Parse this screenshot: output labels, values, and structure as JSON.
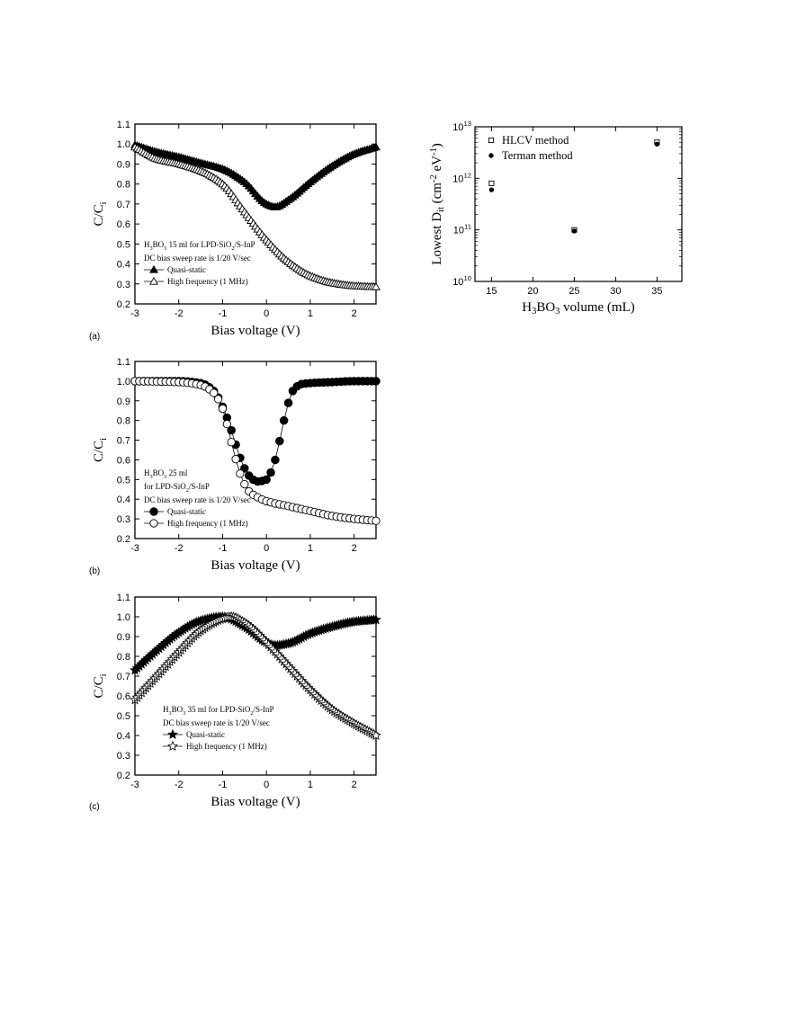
{
  "chart_data": [
    {
      "id": "a",
      "type": "line",
      "panel_label": "(a)",
      "xlabel": "Bias voltage (V)",
      "ylabel": "C/C",
      "ylabel_sub": "i",
      "xlim": [
        -3,
        2.5
      ],
      "ylim": [
        0.2,
        1.1
      ],
      "xticks": [
        "-3",
        "-2",
        "-1",
        "0",
        "1",
        "2"
      ],
      "yticks": [
        "0.2",
        "0.3",
        "0.4",
        "0.5",
        "0.6",
        "0.7",
        "0.8",
        "0.9",
        "1.0",
        "1.1"
      ],
      "annotation": {
        "main": "H",
        "sub1": "3",
        "mid": "BO",
        "sub2": "3",
        "rest": " 15 ml for LPD-SiO",
        "sub3": "2",
        "tail": "/S-InP"
      },
      "annotation_line2": "DC bias sweep rate is 1/20 V/sec",
      "series": [
        {
          "name": "Quasi-static",
          "marker": "triangle-filled",
          "x": [
            -3.0,
            -2.5,
            -2.0,
            -1.5,
            -1.0,
            -0.5,
            0.0,
            0.2,
            0.5,
            1.0,
            1.5,
            2.0,
            2.5
          ],
          "y": [
            0.995,
            0.96,
            0.935,
            0.905,
            0.875,
            0.81,
            0.7,
            0.685,
            0.72,
            0.81,
            0.89,
            0.95,
            0.985
          ]
        },
        {
          "name": "High frequency (1 MHz)",
          "marker": "triangle-open",
          "x": [
            -3.0,
            -2.5,
            -2.0,
            -1.5,
            -1.0,
            -0.5,
            0.0,
            0.5,
            1.0,
            1.5,
            2.0,
            2.5
          ],
          "y": [
            0.985,
            0.925,
            0.9,
            0.865,
            0.8,
            0.66,
            0.52,
            0.41,
            0.34,
            0.305,
            0.29,
            0.285
          ]
        }
      ]
    },
    {
      "id": "dit",
      "type": "scatter",
      "xlabel": {
        "main": "H",
        "sub1": "3",
        "mid": "BO",
        "sub2": "3",
        "rest": " volume (mL)"
      },
      "ylabel": {
        "main": "Lowest D",
        "sub": "it",
        "rest": " (cm",
        "sup1": "-2",
        "rest2": " eV",
        "sup2": "-1",
        "end": ")"
      },
      "xlim": [
        13,
        38
      ],
      "ylim_log10": [
        10,
        13
      ],
      "xticks": [
        "15",
        "20",
        "25",
        "30",
        "35"
      ],
      "yticks": [
        {
          "base": "10",
          "exp": "10"
        },
        {
          "base": "10",
          "exp": "11"
        },
        {
          "base": "10",
          "exp": "12"
        },
        {
          "base": "10",
          "exp": "13"
        }
      ],
      "y_scale": "log",
      "legend_position": "top-left",
      "series": [
        {
          "name": "HLCV method",
          "marker": "square-open",
          "x": [
            15,
            25,
            35
          ],
          "y": [
            800000000000.0,
            100000000000.0,
            5000000000000.0
          ]
        },
        {
          "name": "Terman method",
          "marker": "circle-filled",
          "x": [
            15,
            25,
            35
          ],
          "y": [
            600000000000.0,
            95000000000.0,
            4600000000000.0
          ]
        }
      ]
    },
    {
      "id": "b",
      "type": "line",
      "panel_label": "(b)",
      "xlabel": "Bias voltage (V)",
      "ylabel": "C/C",
      "ylabel_sub": "i",
      "xlim": [
        -3,
        2.5
      ],
      "ylim": [
        0.2,
        1.1
      ],
      "xticks": [
        "-3",
        "-2",
        "-1",
        "0",
        "1",
        "2"
      ],
      "yticks": [
        "0.2",
        "0.3",
        "0.4",
        "0.5",
        "0.6",
        "0.7",
        "0.8",
        "0.9",
        "1.0",
        "1.1"
      ],
      "annotation": {
        "main": "H",
        "sub1": "3",
        "mid": "BO",
        "sub2": "3",
        "rest": " 25 ml"
      },
      "annotation_line2": {
        "main": "for LPD-SiO",
        "sub": "2",
        "rest": "/S-InP"
      },
      "annotation_line3": "DC bias sweep rate is 1/20 V/sec",
      "series": [
        {
          "name": "Quasi-static",
          "marker": "circle-filled",
          "x": [
            -3.0,
            -2.0,
            -1.5,
            -1.2,
            -1.0,
            -0.8,
            -0.6,
            -0.4,
            -0.2,
            0.0,
            0.2,
            0.4,
            0.6,
            0.8,
            1.0,
            1.5,
            2.0,
            2.5
          ],
          "y": [
            1.0,
            1.0,
            0.99,
            0.95,
            0.87,
            0.75,
            0.61,
            0.52,
            0.49,
            0.5,
            0.6,
            0.8,
            0.95,
            0.985,
            0.99,
            0.995,
            1.0,
            1.0
          ]
        },
        {
          "name": "High frequency (1 MHz)",
          "marker": "circle-open",
          "x": [
            -3.0,
            -2.0,
            -1.5,
            -1.2,
            -1.0,
            -0.8,
            -0.6,
            -0.4,
            -0.2,
            0.0,
            0.5,
            1.0,
            1.5,
            2.0,
            2.5
          ],
          "y": [
            1.0,
            0.995,
            0.98,
            0.94,
            0.86,
            0.69,
            0.53,
            0.44,
            0.41,
            0.39,
            0.365,
            0.34,
            0.315,
            0.3,
            0.29
          ]
        }
      ]
    },
    {
      "id": "c",
      "type": "line",
      "panel_label": "(c)",
      "xlabel": "Bias voltage (V)",
      "ylabel": "C/C",
      "ylabel_sub": "i",
      "xlim": [
        -3,
        2.5
      ],
      "ylim": [
        0.2,
        1.1
      ],
      "xticks": [
        "-3",
        "-2",
        "-1",
        "0",
        "1",
        "2"
      ],
      "yticks": [
        "0.2",
        "0.3",
        "0.4",
        "0.5",
        "0.6",
        "0.7",
        "0.8",
        "0.9",
        "1.0",
        "1.1"
      ],
      "annotation": {
        "main": "H",
        "sub1": "3",
        "mid": "BO",
        "sub2": "3",
        "rest": " 35 ml for LPD-SiO",
        "sub3": "2",
        "tail": "/S-InP"
      },
      "annotation_line2": "DC bias sweep rate is 1/20 V/sec",
      "series": [
        {
          "name": "Quasi-static",
          "marker": "star-filled",
          "x": [
            -3.0,
            -2.5,
            -2.0,
            -1.5,
            -1.0,
            -0.5,
            0.0,
            0.2,
            0.5,
            1.0,
            1.5,
            2.0,
            2.5
          ],
          "y": [
            0.73,
            0.83,
            0.92,
            0.98,
            1.0,
            0.95,
            0.87,
            0.855,
            0.865,
            0.915,
            0.95,
            0.975,
            0.985
          ]
        },
        {
          "name": "High frequency (1 MHz)",
          "marker": "star-open",
          "x": [
            -3.0,
            -2.5,
            -2.0,
            -1.5,
            -1.0,
            -0.8,
            -0.5,
            0.0,
            0.5,
            1.0,
            1.5,
            2.0,
            2.5
          ],
          "y": [
            0.58,
            0.7,
            0.82,
            0.93,
            0.99,
            1.0,
            0.97,
            0.87,
            0.75,
            0.63,
            0.53,
            0.46,
            0.4
          ]
        }
      ]
    }
  ]
}
